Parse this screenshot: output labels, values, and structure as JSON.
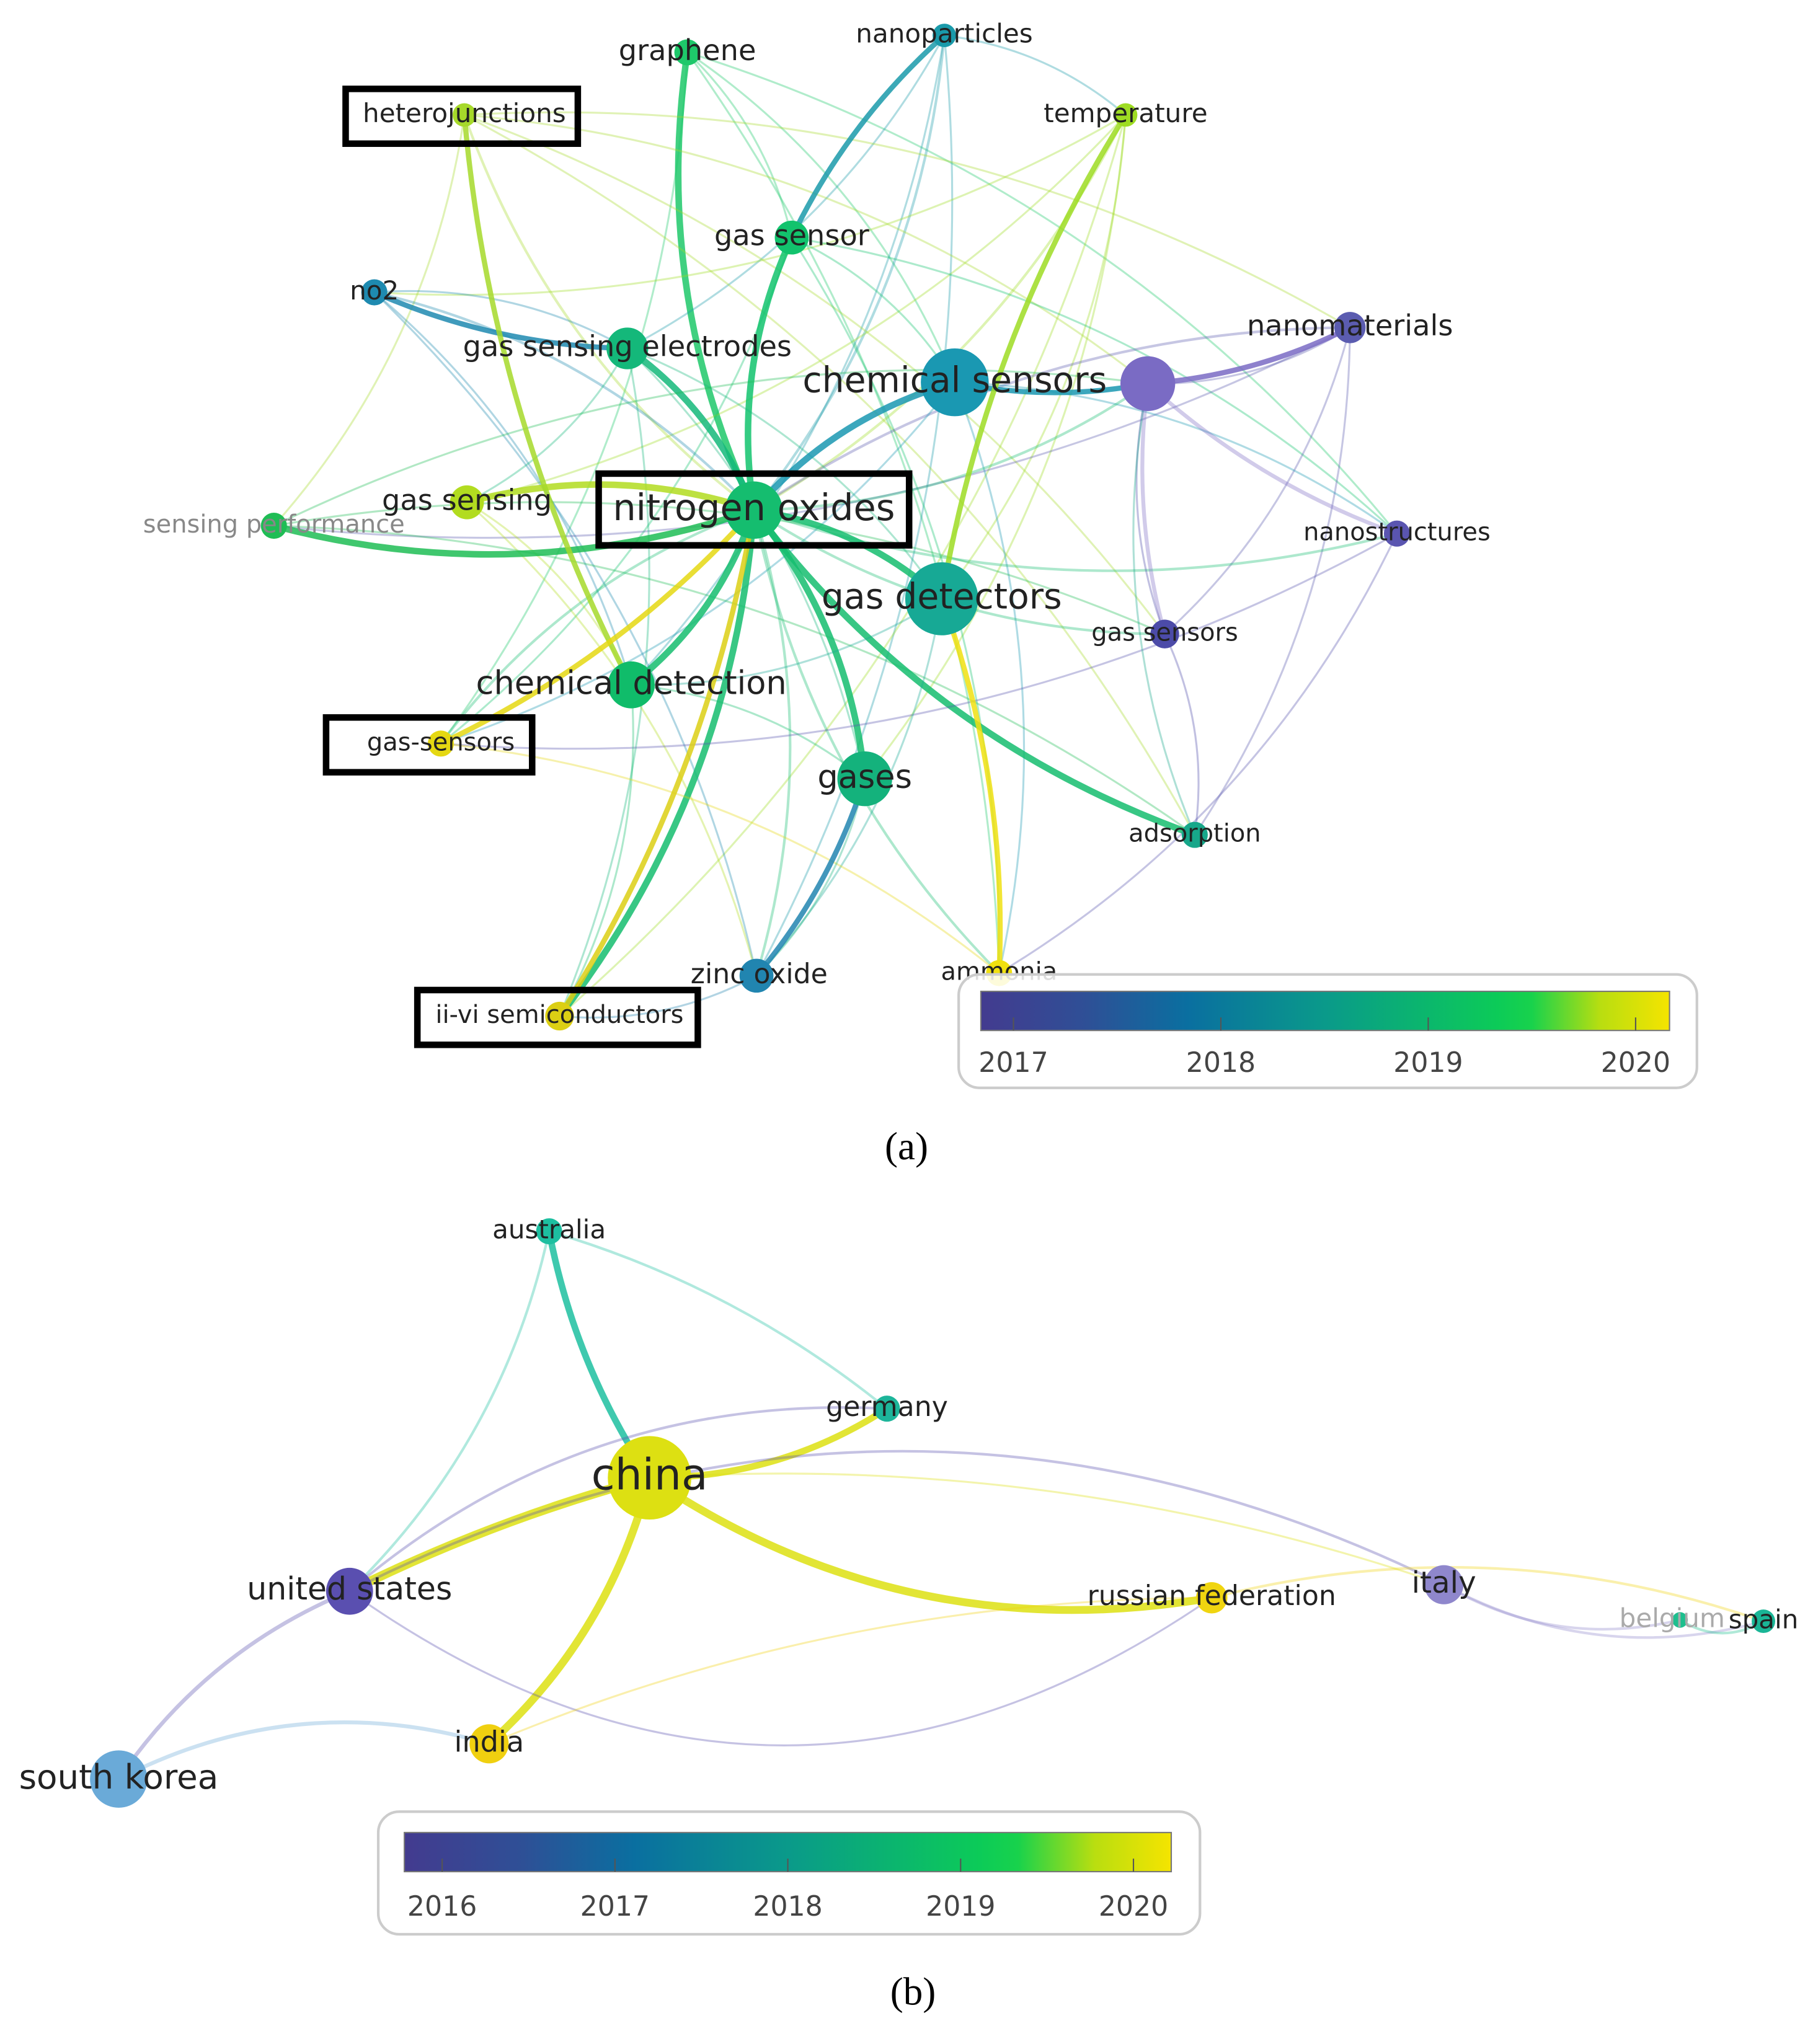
{
  "panel_a": {
    "nodes": [
      "graphene",
      "nanoparticles",
      "heterojunctions",
      "temperature",
      "gas sensor",
      "no2",
      "nanomaterials",
      "gas sensing electrodes",
      "chemical sensors",
      "gas sensing",
      "sensing performance",
      "nitrogen oxides",
      "nanostructures",
      "gas detectors",
      "gas sensors",
      "chemical detection",
      "gas-sensors",
      "gases",
      "adsorption",
      "zinc oxide",
      "ammonia",
      "ii-vi semiconductors"
    ],
    "colorbar_ticks": [
      "2017",
      "2018",
      "2019",
      "2020"
    ],
    "caption": "(a)"
  },
  "panel_b": {
    "nodes": [
      "australia",
      "germany",
      "china",
      "united states",
      "russian federation",
      "italy",
      "belgium",
      "spain",
      "india",
      "south korea"
    ],
    "colorbar_ticks": [
      "2016",
      "2017",
      "2018",
      "2019",
      "2020"
    ],
    "caption": "(b)"
  }
}
